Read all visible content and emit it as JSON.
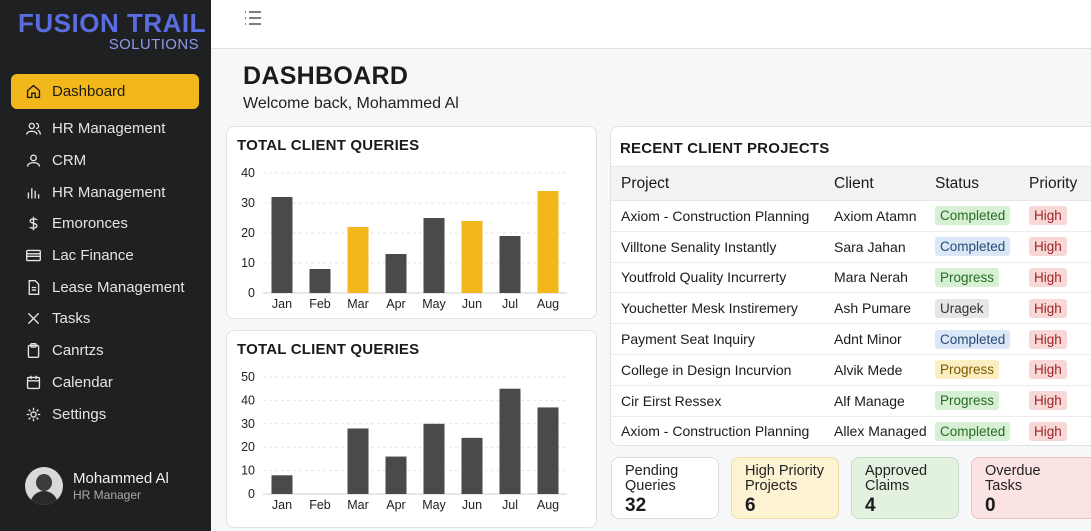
{
  "brand": {
    "name": "FUSION TRAIL",
    "subtitle": "SOLUTIONS"
  },
  "sidebar": {
    "items": [
      {
        "label": "Dashboard",
        "icon": "home-icon",
        "active": true
      },
      {
        "label": "HR Management",
        "icon": "users-icon"
      },
      {
        "label": "CRM",
        "icon": "people-icon"
      },
      {
        "label": "HR Management",
        "icon": "bar-chart-icon"
      },
      {
        "label": "Emoronces",
        "icon": "dollar-icon"
      },
      {
        "label": "Lac Finance",
        "icon": "card-icon"
      },
      {
        "label": "Lease Management",
        "icon": "document-icon"
      },
      {
        "label": "Tasks",
        "icon": "tasks-icon"
      },
      {
        "label": "Canrtzs",
        "icon": "clipboard-icon"
      },
      {
        "label": "Calendar",
        "icon": "calendar-icon"
      },
      {
        "label": "Settings",
        "icon": "gear-icon"
      }
    ]
  },
  "user": {
    "name": "Mohammed Al",
    "role": "HR Manager"
  },
  "page": {
    "title": "DASHBOARD",
    "welcome": "Welcome back, Mohammed Al"
  },
  "colors": {
    "accent": "#f2b71a",
    "bar_dark": "#4a4a4a",
    "sidebar_bg": "#1f2022"
  },
  "chart_data": [
    {
      "type": "bar",
      "title": "TOTAL CLIENT QUERIES",
      "categories": [
        "Jan",
        "Feb",
        "Mar",
        "Apr",
        "May",
        "Jun",
        "Jul",
        "Aug"
      ],
      "values": [
        32,
        8,
        22,
        13,
        25,
        24,
        19,
        34
      ],
      "highlighted": [
        false,
        false,
        true,
        false,
        false,
        true,
        false,
        true
      ],
      "ylim": [
        0,
        40
      ],
      "yticks": [
        0,
        10,
        20,
        30,
        40
      ],
      "grid": true
    },
    {
      "type": "bar",
      "title": "TOTAL CLIENT QUERIES",
      "categories": [
        "Jan",
        "Feb",
        "Mar",
        "Apr",
        "May",
        "Jun",
        "Jul",
        "Aug"
      ],
      "values": [
        8,
        0,
        28,
        16,
        30,
        24,
        45,
        37
      ],
      "ylim": [
        0,
        50
      ],
      "yticks": [
        0,
        10,
        20,
        30,
        40,
        50
      ],
      "grid": true
    }
  ],
  "projects": {
    "title": "RECENT CLIENT PROJECTS",
    "columns": [
      "Project",
      "Client",
      "Status",
      "Priority"
    ],
    "rows": [
      {
        "project": "Axiom - Construction Planning",
        "client": "Axiom Atamn",
        "status": "Completed",
        "priority": "High"
      },
      {
        "project": "Villtone Senality Instantly",
        "client": "Sara Jahan",
        "status": "Completed",
        "priority": "High"
      },
      {
        "project": "Youtfrold Quality Incurrerty",
        "client": "Mara Nerah",
        "status": "Progress",
        "priority": "High"
      },
      {
        "project": "Youchetter Mesk Instiremery",
        "client": "Ash Pumare",
        "status": "Uragek",
        "priority": "High"
      },
      {
        "project": "Payment Seat Inquiry",
        "client": "Adnt Minor",
        "status": "Completed",
        "priority": "High"
      },
      {
        "project": "College in Design Incurvion",
        "client": "Alvik Mede",
        "status": "Progress",
        "priority": "High"
      },
      {
        "project": "Cir Eirst Ressex",
        "client": "Alf Manage",
        "status": "Progress",
        "priority": "High"
      },
      {
        "project": "Axiom - Construction Planning",
        "client": "Allex Managed",
        "status": "Completed",
        "priority": "High"
      }
    ],
    "status_styles": [
      {
        "bg": "#d7f0d3",
        "fg": "#256b25"
      },
      {
        "bg": "#d9e7f7",
        "fg": "#2a4a75"
      },
      {
        "bg": "#d7f0d3",
        "fg": "#256b25"
      },
      {
        "bg": "#e6e6e6",
        "fg": "#333333"
      },
      {
        "bg": "#d9e7f7",
        "fg": "#2a4a75"
      },
      {
        "bg": "#fbeec0",
        "fg": "#7a5a00"
      },
      {
        "bg": "#d7f0d3",
        "fg": "#256b25"
      },
      {
        "bg": "#d7f0d3",
        "fg": "#256b25"
      }
    ],
    "priority_style": {
      "bg": "#f8d7d7",
      "fg": "#a02525"
    }
  },
  "stats": [
    {
      "label": "Pending\nQueries",
      "value": "32"
    },
    {
      "label": "High Priority\nProjects",
      "value": "6"
    },
    {
      "label": "Approved\nClaims",
      "value": "4"
    },
    {
      "label": "Overdue\nTasks",
      "value": "0"
    }
  ]
}
